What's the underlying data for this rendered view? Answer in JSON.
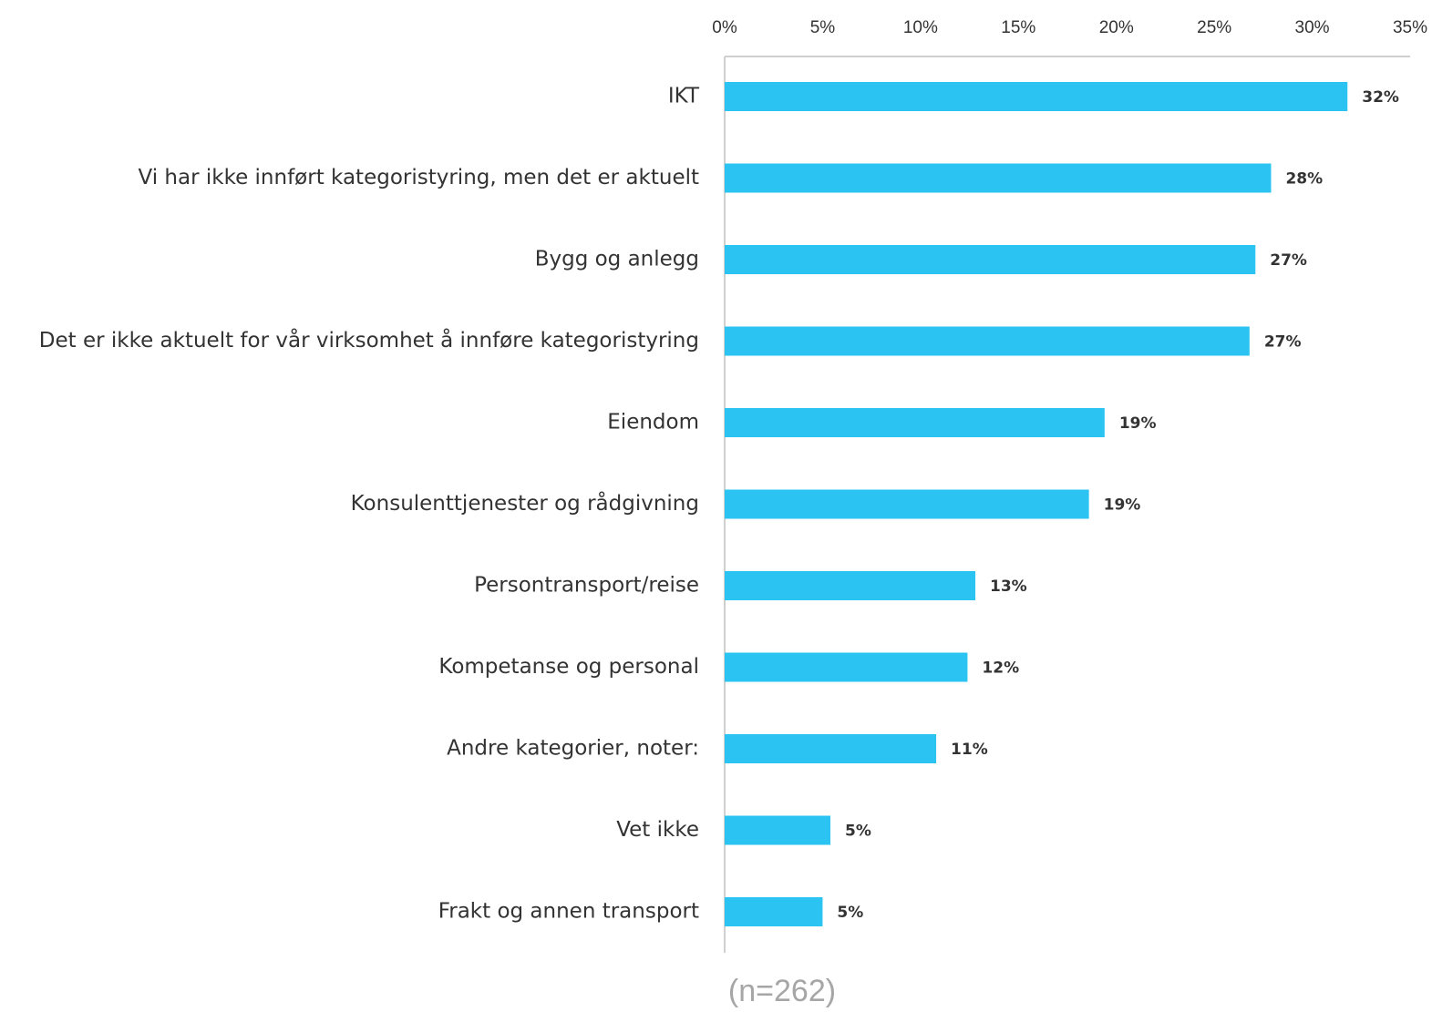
{
  "chart_data": {
    "type": "bar",
    "orientation": "horizontal",
    "categories": [
      "IKT",
      "Vi har ikke innført kategoristyring, men det er aktuelt",
      "Bygg og anlegg",
      "Det er ikke aktuelt for vår virksomhet å innføre kategoristyring",
      "Eiendom",
      "Konsulenttjenester og rådgivning",
      "Persontransport/reise",
      "Kompetanse og personal",
      "Andre kategorier, noter:",
      "Vet ikke",
      "Frakt og annen transport"
    ],
    "values": [
      31.8,
      27.9,
      27.1,
      26.8,
      19.4,
      18.6,
      12.8,
      12.4,
      10.8,
      5.4,
      5.0
    ],
    "value_labels": [
      "32%",
      "28%",
      "27%",
      "27%",
      "19%",
      "19%",
      "13%",
      "12%",
      "11%",
      "5%",
      "5%"
    ],
    "color": "#2bc4f2",
    "xlim": [
      0,
      35
    ],
    "xticks": [
      {
        "value": 0,
        "label": "0%"
      },
      {
        "value": 5,
        "label": "5%"
      },
      {
        "value": 10,
        "label": "10%"
      },
      {
        "value": 15,
        "label": "15%"
      },
      {
        "value": 20,
        "label": "20%"
      },
      {
        "value": 25,
        "label": "25%"
      },
      {
        "value": 30,
        "label": "30%"
      },
      {
        "value": 35,
        "label": "35%"
      }
    ],
    "note": "(n=262)"
  }
}
